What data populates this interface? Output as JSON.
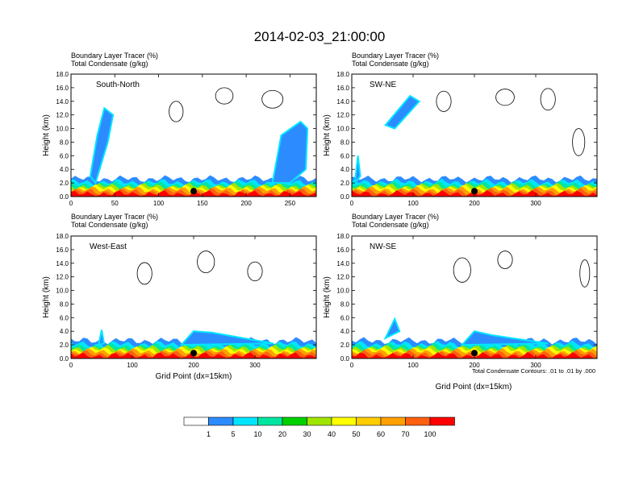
{
  "title": "2014-02-03_21:00:00",
  "header_line1": "Boundary Layer Tracer   (%)",
  "header_line2": "Total Condensate   (g/kg)",
  "footnote": "Total Condensate Contours: .01 to .01 by .000",
  "xlabel": "Grid Point (dx=15km)",
  "ylabel": "Height (km)",
  "yticks": [
    "0.0",
    "2.0",
    "4.0",
    "6.0",
    "8.0",
    "10.0",
    "12.0",
    "14.0",
    "16.0",
    "18.0"
  ],
  "legend_labels": [
    "1",
    "5",
    "10",
    "20",
    "30",
    "40",
    "50",
    "60",
    "70",
    "100"
  ],
  "legend_colors": [
    "#ffffff",
    "#2c8cff",
    "#00e5ff",
    "#00e6a0",
    "#00d000",
    "#9ee600",
    "#ffff00",
    "#ffcc00",
    "#ffa000",
    "#ff6010",
    "#ff0000"
  ],
  "chart_data": [
    {
      "type": "heatmap",
      "panel": "South-North",
      "xticks": [
        "0",
        "50",
        "100",
        "150",
        "200",
        "250"
      ],
      "xlim": [
        0,
        280
      ],
      "ylim": [
        0,
        18
      ]
    },
    {
      "type": "heatmap",
      "panel": "SW-NE",
      "xticks": [
        "0",
        "100",
        "200",
        "300"
      ],
      "xlim": [
        0,
        400
      ],
      "ylim": [
        0,
        18
      ]
    },
    {
      "type": "heatmap",
      "panel": "West-East",
      "xticks": [
        "0",
        "100",
        "200",
        "300"
      ],
      "xlim": [
        0,
        400
      ],
      "ylim": [
        0,
        18
      ]
    },
    {
      "type": "heatmap",
      "panel": "NW-SE",
      "xticks": [
        "0",
        "100",
        "200",
        "300"
      ],
      "xlim": [
        0,
        400
      ],
      "ylim": [
        0,
        18
      ]
    }
  ]
}
